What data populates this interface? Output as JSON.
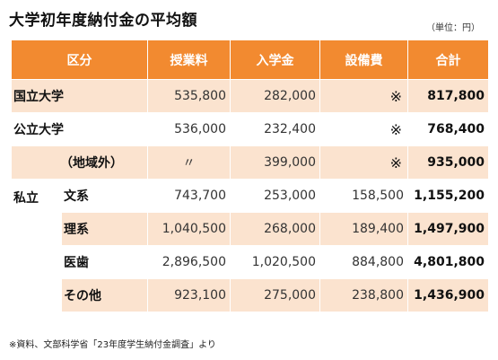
{
  "title": "大学初年度納付金の平均額",
  "unit": "（単位：円）",
  "columns": [
    "区分",
    "授業料",
    "入学金",
    "設備費",
    "合計"
  ],
  "rows": {
    "national": {
      "label": "国立大学",
      "tuition": "535,800",
      "admission": "282,000",
      "facility": "※",
      "total": "817,800"
    },
    "public": {
      "label": "公立大学",
      "tuition": "536,000",
      "admission": "232,400",
      "facility": "※",
      "total": "768,400"
    },
    "public_outside": {
      "label": "（地域外）",
      "tuition": "〃",
      "admission": "399,000",
      "facility": "※",
      "total": "935,000"
    },
    "private_label": "私立",
    "private_humanities": {
      "label": "文系",
      "tuition": "743,700",
      "admission": "253,000",
      "facility": "158,500",
      "total": "1,155,200"
    },
    "private_science": {
      "label": "理系",
      "tuition": "1,040,500",
      "admission": "268,000",
      "facility": "189,400",
      "total": "1,497,900"
    },
    "private_medical": {
      "label": "医歯",
      "tuition": "2,896,500",
      "admission": "1,020,500",
      "facility": "884,800",
      "total": "4,801,800"
    },
    "private_other": {
      "label": "その他",
      "tuition": "923,100",
      "admission": "275,000",
      "facility": "238,800",
      "total": "1,436,900"
    }
  },
  "source": "※資料、文部科学省「23年度学生納付金調査」より"
}
